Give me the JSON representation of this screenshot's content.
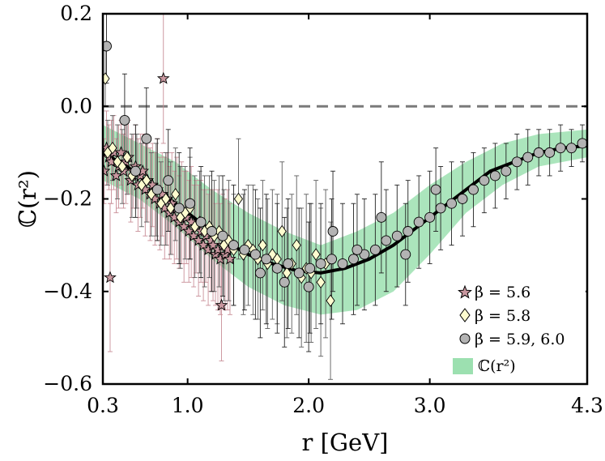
{
  "chart_data": {
    "type": "scatter",
    "title": "",
    "xlabel": "r [GeV]",
    "ylabel": "ℂ(r²)",
    "xlim": [
      0.3,
      4.3
    ],
    "ylim": [
      -0.6,
      0.2
    ],
    "xticks": [
      0.3,
      1.0,
      2.0,
      3.0,
      4.3
    ],
    "xtick_labels": [
      "0.3",
      "1.0",
      "2.0",
      "3.0",
      "4.3"
    ],
    "yticks": [
      -0.6,
      -0.4,
      -0.2,
      0.0,
      0.2
    ],
    "ytick_labels": [
      "−0.6",
      "−0.4",
      "−0.2",
      "0.0",
      "0.2"
    ],
    "grid": false,
    "legend_position": "bottom-right",
    "reference_line": {
      "y": 0.0,
      "style": "dashed",
      "color": "#7a7a7a"
    },
    "colors": {
      "beta56": "#c9979f",
      "beta56_errorbar": "#c98f98",
      "beta58": "#fdfccf",
      "beta59": "#b3b3b3",
      "band": "#9ce0b0",
      "fit": "#000000"
    },
    "series": [
      {
        "name": "β = 5.6",
        "marker": "star",
        "x": [
          0.31,
          0.33,
          0.35,
          0.37,
          0.39,
          0.41,
          0.43,
          0.45,
          0.47,
          0.49,
          0.51,
          0.53,
          0.55,
          0.57,
          0.59,
          0.61,
          0.63,
          0.65,
          0.67,
          0.69,
          0.71,
          0.73,
          0.75,
          0.77,
          0.79,
          0.81,
          0.83,
          0.85,
          0.87,
          0.89,
          0.91,
          0.93,
          0.95,
          0.97,
          0.99,
          1.01,
          1.03,
          1.05,
          1.07,
          1.09,
          1.11,
          1.13,
          1.15,
          1.17,
          1.19,
          1.21,
          1.23,
          1.25,
          1.27,
          1.29,
          1.31,
          1.33,
          1.35,
          0.36,
          0.8,
          1.28
        ],
        "y": [
          -0.14,
          -0.09,
          -0.11,
          -0.12,
          -0.1,
          -0.15,
          -0.13,
          -0.1,
          -0.14,
          -0.12,
          -0.11,
          -0.16,
          -0.14,
          -0.13,
          -0.17,
          -0.15,
          -0.14,
          -0.18,
          -0.16,
          -0.19,
          -0.17,
          -0.2,
          -0.18,
          -0.21,
          -0.19,
          -0.22,
          -0.2,
          -0.23,
          -0.21,
          -0.24,
          -0.22,
          -0.25,
          -0.23,
          -0.26,
          -0.24,
          -0.27,
          -0.25,
          -0.28,
          -0.26,
          -0.29,
          -0.27,
          -0.3,
          -0.28,
          -0.31,
          -0.29,
          -0.3,
          -0.32,
          -0.31,
          -0.33,
          -0.3,
          -0.32,
          -0.31,
          -0.33,
          -0.37,
          0.06,
          -0.43
        ],
        "err": [
          0.07,
          0.08,
          0.07,
          0.09,
          0.08,
          0.08,
          0.09,
          0.07,
          0.08,
          0.09,
          0.08,
          0.09,
          0.08,
          0.09,
          0.1,
          0.09,
          0.08,
          0.1,
          0.09,
          0.1,
          0.09,
          0.1,
          0.11,
          0.1,
          0.09,
          0.11,
          0.1,
          0.1,
          0.11,
          0.1,
          0.11,
          0.1,
          0.11,
          0.12,
          0.1,
          0.11,
          0.12,
          0.11,
          0.1,
          0.12,
          0.11,
          0.12,
          0.1,
          0.12,
          0.11,
          0.12,
          0.11,
          0.13,
          0.12,
          0.11,
          0.12,
          0.13,
          0.12,
          0.16,
          0.14,
          0.12
        ]
      },
      {
        "name": "β = 5.8",
        "marker": "diamond",
        "x": [
          0.32,
          0.34,
          0.38,
          0.42,
          0.46,
          0.5,
          0.54,
          0.58,
          0.62,
          0.66,
          0.7,
          0.74,
          0.78,
          0.82,
          0.86,
          0.9,
          0.94,
          0.98,
          1.02,
          1.06,
          1.1,
          1.14,
          1.18,
          1.22,
          1.26,
          1.3,
          1.34,
          1.38,
          1.42,
          1.46,
          1.5,
          1.54,
          1.58,
          1.62,
          1.66,
          1.7,
          1.74,
          1.78,
          1.82,
          1.86,
          1.9,
          1.94,
          1.98,
          2.02,
          2.06,
          2.1,
          2.14,
          2.18
        ],
        "y": [
          0.06,
          -0.1,
          -0.09,
          -0.12,
          -0.13,
          -0.11,
          -0.15,
          -0.14,
          -0.17,
          -0.16,
          -0.19,
          -0.18,
          -0.21,
          -0.2,
          -0.22,
          -0.19,
          -0.24,
          -0.23,
          -0.22,
          -0.26,
          -0.25,
          -0.27,
          -0.26,
          -0.28,
          -0.27,
          -0.3,
          -0.29,
          -0.31,
          -0.2,
          -0.32,
          -0.3,
          -0.31,
          -0.33,
          -0.3,
          -0.34,
          -0.32,
          -0.33,
          -0.27,
          -0.36,
          -0.34,
          -0.3,
          -0.37,
          -0.35,
          -0.36,
          -0.32,
          -0.38,
          -0.34,
          -0.42
        ],
        "err": [
          0.06,
          0.07,
          0.07,
          0.08,
          0.08,
          0.08,
          0.09,
          0.08,
          0.09,
          0.09,
          0.09,
          0.1,
          0.09,
          0.1,
          0.1,
          0.1,
          0.11,
          0.1,
          0.11,
          0.11,
          0.11,
          0.12,
          0.11,
          0.12,
          0.12,
          0.12,
          0.13,
          0.12,
          0.13,
          0.13,
          0.13,
          0.14,
          0.13,
          0.14,
          0.14,
          0.14,
          0.14,
          0.15,
          0.14,
          0.15,
          0.15,
          0.15,
          0.16,
          0.15,
          0.16,
          0.16,
          0.16,
          0.17
        ]
      },
      {
        "name": "β = 5.9, 6.0",
        "marker": "circle",
        "x": [
          0.33,
          0.48,
          0.57,
          0.66,
          0.75,
          0.84,
          0.93,
          1.02,
          1.11,
          1.2,
          1.29,
          1.38,
          1.47,
          1.56,
          1.65,
          1.74,
          1.83,
          1.92,
          2.01,
          2.1,
          2.19,
          2.28,
          2.37,
          2.46,
          2.55,
          2.64,
          2.73,
          2.82,
          2.91,
          3.0,
          3.09,
          3.18,
          3.27,
          3.36,
          3.45,
          3.54,
          3.63,
          3.72,
          3.81,
          3.9,
          3.99,
          4.08,
          4.17,
          4.26,
          1.6,
          1.8,
          2.0,
          2.2,
          2.4,
          2.6,
          2.8,
          3.05
        ],
        "y": [
          0.13,
          -0.03,
          -0.14,
          -0.07,
          -0.18,
          -0.16,
          -0.22,
          -0.21,
          -0.25,
          -0.27,
          -0.28,
          -0.3,
          -0.31,
          -0.32,
          -0.33,
          -0.35,
          -0.34,
          -0.36,
          -0.35,
          -0.34,
          -0.33,
          -0.34,
          -0.33,
          -0.32,
          -0.31,
          -0.29,
          -0.28,
          -0.27,
          -0.25,
          -0.24,
          -0.22,
          -0.21,
          -0.2,
          -0.18,
          -0.16,
          -0.15,
          -0.14,
          -0.12,
          -0.11,
          -0.1,
          -0.1,
          -0.09,
          -0.09,
          -0.08,
          -0.36,
          -0.38,
          -0.39,
          -0.27,
          -0.31,
          -0.24,
          -0.32,
          -0.18
        ],
        "err": [
          0.08,
          0.1,
          0.1,
          0.11,
          0.11,
          0.11,
          0.12,
          0.12,
          0.12,
          0.13,
          0.13,
          0.13,
          0.13,
          0.14,
          0.14,
          0.14,
          0.14,
          0.14,
          0.14,
          0.13,
          0.13,
          0.13,
          0.12,
          0.12,
          0.12,
          0.11,
          0.11,
          0.11,
          0.1,
          0.1,
          0.09,
          0.09,
          0.08,
          0.08,
          0.07,
          0.07,
          0.06,
          0.06,
          0.06,
          0.05,
          0.05,
          0.05,
          0.04,
          0.04,
          0.14,
          0.14,
          0.14,
          0.13,
          0.12,
          0.12,
          0.11,
          0.09
        ]
      }
    ],
    "band": {
      "name": "ℂ(r²)",
      "x": [
        0.3,
        0.6,
        0.9,
        1.2,
        1.5,
        1.8,
        2.1,
        2.4,
        2.7,
        3.0,
        3.3,
        3.6,
        3.9,
        4.3
      ],
      "y_low": [
        -0.16,
        -0.2,
        -0.26,
        -0.33,
        -0.39,
        -0.43,
        -0.45,
        -0.44,
        -0.4,
        -0.32,
        -0.23,
        -0.17,
        -0.13,
        -0.11
      ],
      "y_high": [
        -0.04,
        -0.08,
        -0.12,
        -0.18,
        -0.23,
        -0.27,
        -0.3,
        -0.27,
        -0.23,
        -0.17,
        -0.12,
        -0.08,
        -0.06,
        -0.05
      ]
    },
    "fit_curve": {
      "x": [
        0.3,
        0.5,
        0.7,
        0.9,
        1.1,
        1.3,
        1.5,
        1.7,
        1.9,
        2.1,
        2.3,
        2.5,
        2.7,
        2.9,
        3.1,
        3.3,
        3.5,
        3.7,
        3.9,
        4.1,
        4.3
      ],
      "y": [
        -0.1,
        -0.13,
        -0.17,
        -0.21,
        -0.25,
        -0.29,
        -0.32,
        -0.34,
        -0.355,
        -0.36,
        -0.35,
        -0.33,
        -0.3,
        -0.26,
        -0.22,
        -0.18,
        -0.14,
        -0.12,
        -0.1,
        -0.09,
        -0.085
      ]
    }
  },
  "legend": {
    "beta56": "β = 5.6",
    "beta58": "β = 5.8",
    "beta59": "β = 5.9, 6.0",
    "band": "ℂ(r²)"
  }
}
